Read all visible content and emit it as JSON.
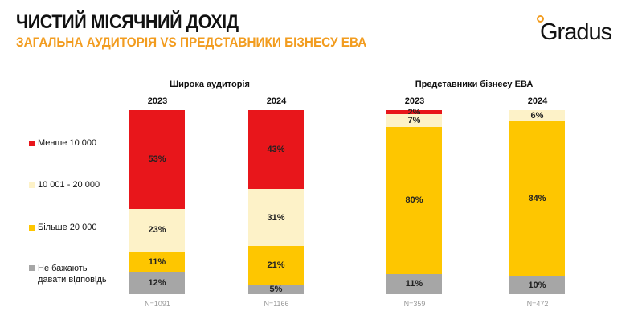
{
  "header": {
    "title": "ЧИСТИЙ МІСЯЧНИЙ ДОХІД",
    "subtitle": "ЗАГАЛЬНА АУДИТОРІЯ VS ПРЕДСТАВНИКИ БІЗНЕСУ ЕВА",
    "logo": "Gradus"
  },
  "chart_data": {
    "type": "bar",
    "stacked": true,
    "unit": "%",
    "legend": [
      "Менше 10 000",
      "10 001 - 20 000",
      "Більше 20 000",
      "Не бажають давати відповідь"
    ],
    "colors": [
      "#e8161b",
      "#fdf2c8",
      "#fec600",
      "#a6a6a6"
    ],
    "groups": [
      {
        "title": "Широка аудиторія",
        "bars": [
          {
            "year": "2023",
            "n": "N=1091",
            "values": [
              53,
              23,
              11,
              12
            ]
          },
          {
            "year": "2024",
            "n": "N=1166",
            "values": [
              43,
              31,
              21,
              5
            ]
          }
        ]
      },
      {
        "title": "Представники бізнесу ЕВА",
        "bars": [
          {
            "year": "2023",
            "n": "N=359",
            "values": [
              2,
              7,
              80,
              11
            ]
          },
          {
            "year": "2024",
            "n": "N=472",
            "values": [
              0,
              6,
              84,
              10
            ]
          }
        ]
      }
    ]
  }
}
